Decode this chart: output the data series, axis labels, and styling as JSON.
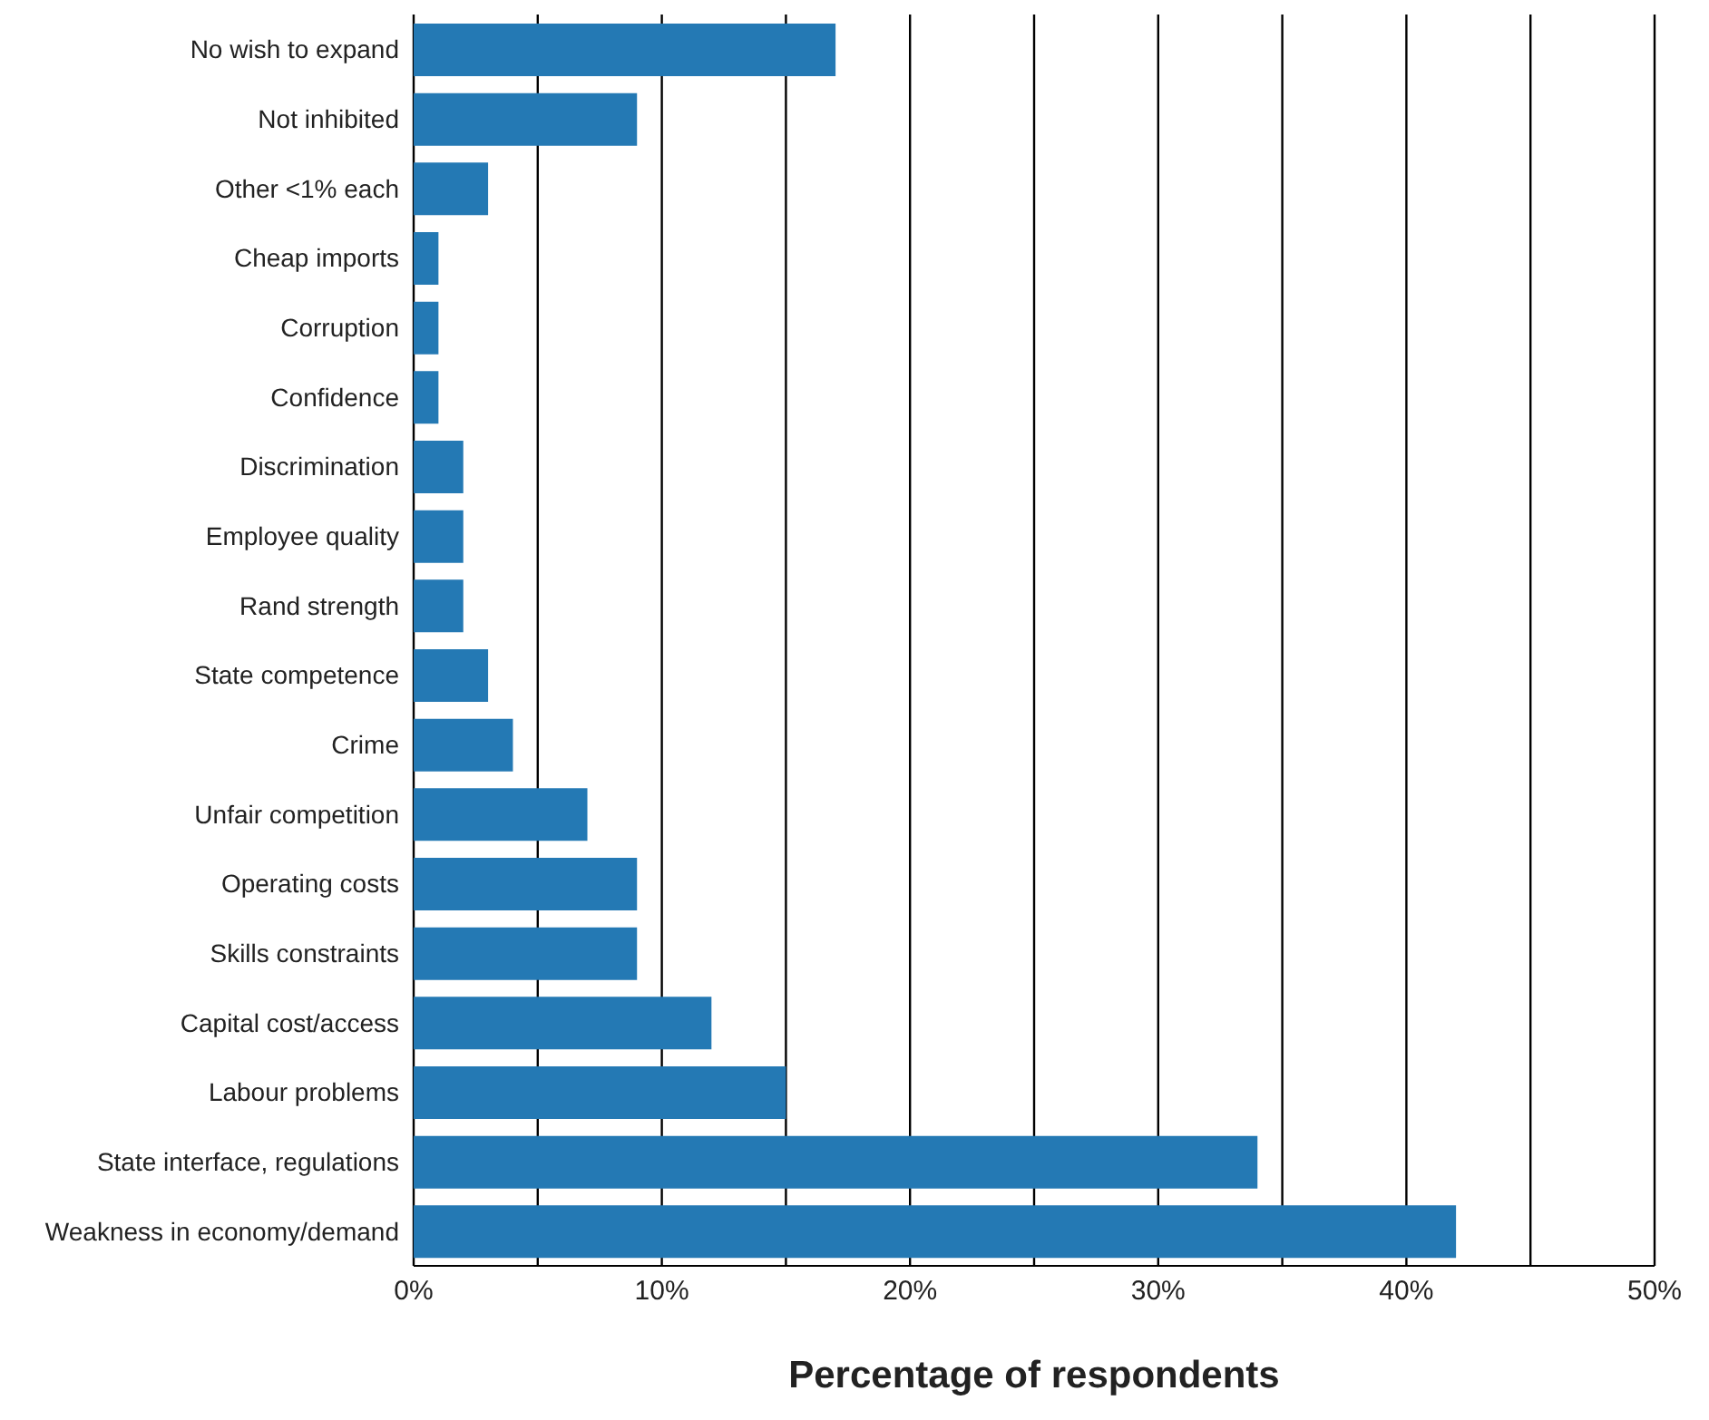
{
  "chart_data": {
    "type": "bar",
    "orientation": "horizontal",
    "xlabel": "Percentage of respondents",
    "categories": [
      "No wish to expand",
      "Not inhibited",
      "Other <1% each",
      "Cheap imports",
      "Corruption",
      "Confidence",
      "Discrimination",
      "Employee quality",
      "Rand strength",
      "State competence",
      "Crime",
      "Unfair competition",
      "Operating costs",
      "Skills constraints",
      "Capital cost/access",
      "Labour problems",
      "State interface, regulations",
      "Weakness in economy/demand"
    ],
    "values": [
      17,
      9,
      3,
      1,
      1,
      1,
      2,
      2,
      2,
      3,
      4,
      7,
      9,
      9,
      12,
      15,
      34,
      42
    ],
    "color": "#2479b4",
    "xlim": [
      0,
      50
    ],
    "xticks": [
      {
        "value": 0,
        "label": "0%"
      },
      {
        "value": 5,
        "label": null
      },
      {
        "value": 10,
        "label": "10%"
      },
      {
        "value": 15,
        "label": null
      },
      {
        "value": 20,
        "label": "20%"
      },
      {
        "value": 25,
        "label": null
      },
      {
        "value": 30,
        "label": "30%"
      },
      {
        "value": 35,
        "label": null
      },
      {
        "value": 40,
        "label": "40%"
      },
      {
        "value": 45,
        "label": null
      },
      {
        "value": 50,
        "label": "50%"
      }
    ],
    "grid": "x",
    "legend": false
  }
}
